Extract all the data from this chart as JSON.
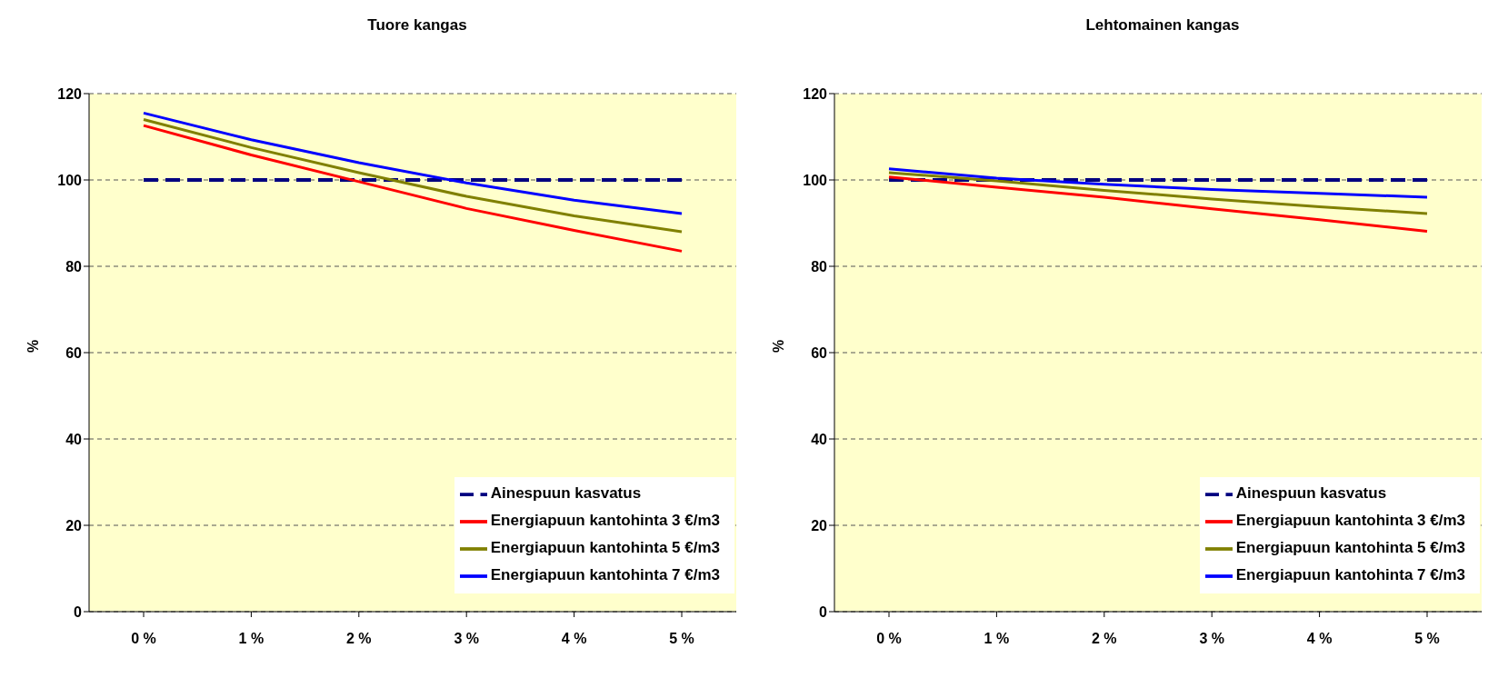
{
  "chart_data": [
    {
      "type": "line",
      "title": "Tuore kangas",
      "ylabel": "%",
      "categories": [
        "0 %",
        "1 %",
        "2 %",
        "3 %",
        "4 %",
        "5 %"
      ],
      "ylim": [
        0,
        120
      ],
      "yticks": [
        0,
        20,
        40,
        60,
        80,
        100,
        120
      ],
      "grid": "y",
      "legend": "bottom right",
      "series": [
        {
          "name": "Ainespuun kasvatus",
          "color": "#000080",
          "line_style": "dashed",
          "values": [
            100,
            100,
            100,
            100,
            100,
            100
          ]
        },
        {
          "name": "Energiapuun kantohinta 3 €/m3",
          "color": "#ff0000",
          "line_style": "solid",
          "values": [
            112.6,
            105.8,
            99.6,
            93.4,
            88.3,
            83.5
          ]
        },
        {
          "name": "Energiapuun kantohinta 5 €/m3",
          "color": "#808000",
          "line_style": "solid",
          "values": [
            114,
            107.5,
            101.7,
            96.2,
            91.7,
            88
          ]
        },
        {
          "name": "Energiapuun kantohinta 7 €/m3",
          "color": "#0000ff",
          "line_style": "solid",
          "values": [
            115.5,
            109.3,
            104,
            99.3,
            95.3,
            92.2
          ]
        }
      ]
    },
    {
      "type": "line",
      "title": "Lehtomainen kangas",
      "ylabel": "%",
      "categories": [
        "0 %",
        "1 %",
        "2 %",
        "3 %",
        "4 %",
        "5 %"
      ],
      "ylim": [
        0,
        120
      ],
      "yticks": [
        0,
        20,
        40,
        60,
        80,
        100,
        120
      ],
      "grid": "y",
      "legend": "bottom right",
      "series": [
        {
          "name": "Ainespuun kasvatus",
          "color": "#000080",
          "line_style": "dashed",
          "values": [
            100,
            100,
            100,
            100,
            100,
            100
          ]
        },
        {
          "name": "Energiapuun kantohinta 3 €/m3",
          "color": "#ff0000",
          "line_style": "solid",
          "values": [
            100.7,
            98.3,
            96,
            93.3,
            90.8,
            88.1
          ]
        },
        {
          "name": "Energiapuun kantohinta 5 €/m3",
          "color": "#808000",
          "line_style": "solid",
          "values": [
            101.7,
            99.8,
            97.6,
            95.6,
            93.8,
            92.2
          ]
        },
        {
          "name": "Energiapuun kantohinta 7 €/m3",
          "color": "#0000ff",
          "line_style": "solid",
          "values": [
            102.6,
            100.4,
            99,
            97.8,
            96.9,
            96
          ]
        }
      ]
    }
  ]
}
